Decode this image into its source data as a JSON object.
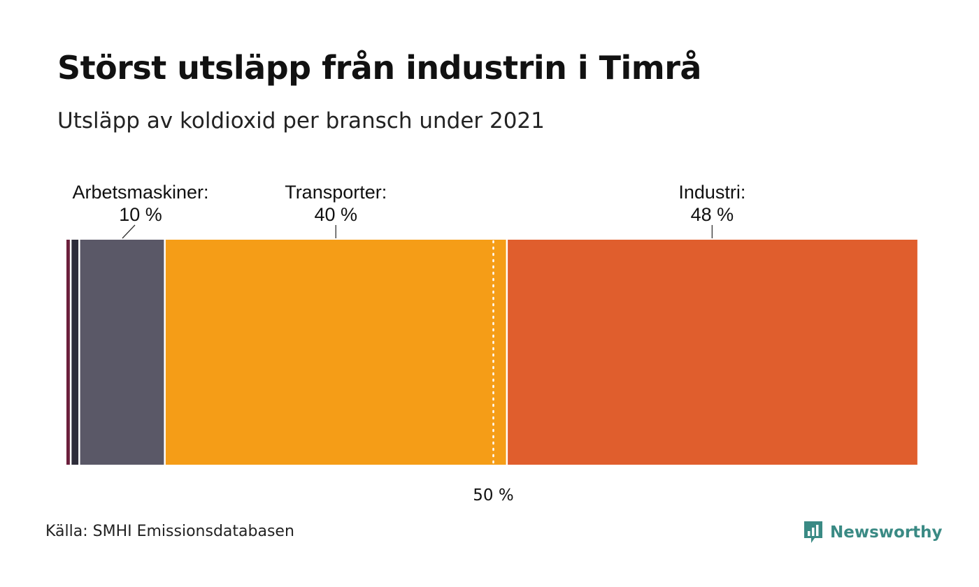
{
  "header": {
    "title": "Störst utsläpp från industrin i Timrå",
    "subtitle": "Utsläpp av koldioxid per bransch under 2021"
  },
  "footer": {
    "source": "Källa: SMHI Emissionsdatabasen",
    "brand": "Newsworthy"
  },
  "colors": {
    "brand": "#3a8a84",
    "divider": "#ffffff",
    "reference_line": "#ffffff"
  },
  "chart_data": {
    "type": "bar",
    "orientation": "horizontal-stacked",
    "unit": "%",
    "xlim": [
      0,
      100
    ],
    "segments": [
      {
        "name": "",
        "value": 0.5,
        "color": "#6b1f3c",
        "label": null
      },
      {
        "name": "",
        "value": 1,
        "color": "#2e2c3a",
        "label": null
      },
      {
        "name": "Arbetsmaskiner:",
        "value": 10,
        "color": "#5a5867",
        "label": "10 %"
      },
      {
        "name": "Transporter:",
        "value": 40,
        "color": "#f59d17",
        "label": "40 %"
      },
      {
        "name": "Industri:",
        "value": 48,
        "color": "#e05e2d",
        "label": "48 %"
      }
    ],
    "reference": {
      "value": 50,
      "label": "50 %"
    }
  }
}
